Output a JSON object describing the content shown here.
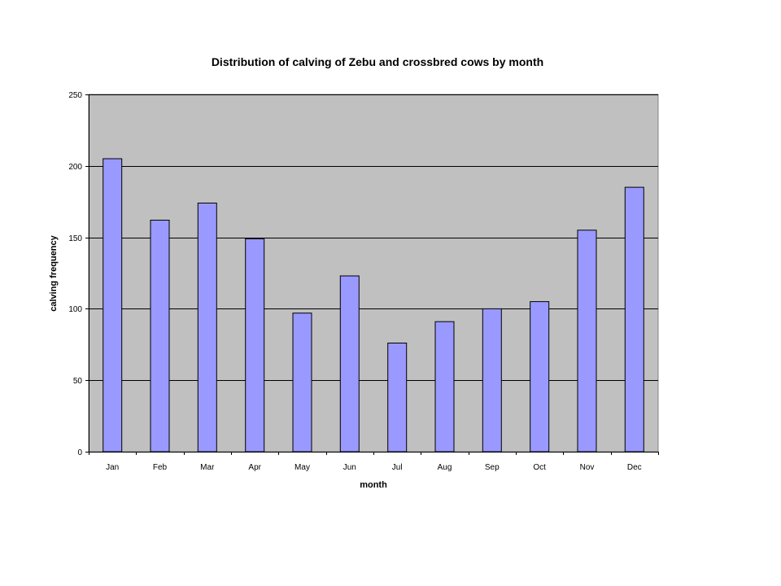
{
  "chart_data": {
    "type": "bar",
    "title": "Distribution of calving of Zebu and crossbred cows by month",
    "xlabel": "month",
    "ylabel": "calving frequency",
    "categories": [
      "Jan",
      "Feb",
      "Mar",
      "Apr",
      "May",
      "Jun",
      "Jul",
      "Aug",
      "Sep",
      "Oct",
      "Nov",
      "Dec"
    ],
    "series": [
      {
        "values": [
          205,
          162,
          174,
          149,
          97,
          123,
          76,
          91,
          100,
          105,
          155,
          185
        ]
      }
    ],
    "ylim": [
      0,
      250
    ],
    "yticks": [
      0,
      50,
      100,
      150,
      200,
      250
    ],
    "grid": true,
    "legend": "none",
    "colors": {
      "bar_fill": "#9999ff",
      "bar_stroke": "#000000",
      "plot_background": "#c0c0c0",
      "gridline": "#000000",
      "page_background": "#ffffff"
    }
  }
}
